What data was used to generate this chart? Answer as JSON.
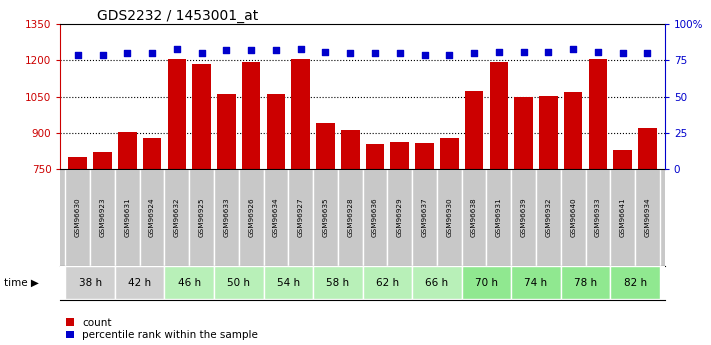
{
  "title": "GDS2232 / 1453001_at",
  "samples": [
    "GSM96630",
    "GSM96923",
    "GSM96631",
    "GSM96924",
    "GSM96632",
    "GSM96925",
    "GSM96633",
    "GSM96926",
    "GSM96634",
    "GSM96927",
    "GSM96635",
    "GSM96928",
    "GSM96636",
    "GSM96929",
    "GSM96637",
    "GSM96930",
    "GSM96638",
    "GSM96931",
    "GSM96639",
    "GSM96932",
    "GSM96640",
    "GSM96933",
    "GSM96641",
    "GSM96934"
  ],
  "counts": [
    800,
    820,
    903,
    878,
    1207,
    1185,
    1060,
    1195,
    1060,
    1207,
    940,
    912,
    855,
    862,
    858,
    878,
    1075,
    1193,
    1050,
    1053,
    1067,
    1205,
    830,
    918
  ],
  "percentiles": [
    79,
    79,
    80,
    80,
    83,
    80,
    82,
    82,
    82,
    83,
    81,
    80,
    80,
    80,
    79,
    79,
    80,
    81,
    81,
    81,
    83,
    81,
    80,
    80
  ],
  "time_groups": [
    {
      "label": "38 h",
      "indices": [
        0,
        1
      ],
      "color": "#d0d0d0"
    },
    {
      "label": "42 h",
      "indices": [
        2,
        3
      ],
      "color": "#d0d0d0"
    },
    {
      "label": "46 h",
      "indices": [
        4,
        5
      ],
      "color": "#b8f0b8"
    },
    {
      "label": "50 h",
      "indices": [
        6,
        7
      ],
      "color": "#b8f0b8"
    },
    {
      "label": "54 h",
      "indices": [
        8,
        9
      ],
      "color": "#b8f0b8"
    },
    {
      "label": "58 h",
      "indices": [
        10,
        11
      ],
      "color": "#b8f0b8"
    },
    {
      "label": "62 h",
      "indices": [
        12,
        13
      ],
      "color": "#b8f0b8"
    },
    {
      "label": "66 h",
      "indices": [
        14,
        15
      ],
      "color": "#b8f0b8"
    },
    {
      "label": "70 h",
      "indices": [
        16,
        17
      ],
      "color": "#90e890"
    },
    {
      "label": "74 h",
      "indices": [
        18,
        19
      ],
      "color": "#90e890"
    },
    {
      "label": "78 h",
      "indices": [
        20,
        21
      ],
      "color": "#90e890"
    },
    {
      "label": "82 h",
      "indices": [
        22,
        23
      ],
      "color": "#90e890"
    }
  ],
  "ylim_left": [
    750,
    1350
  ],
  "ylim_right": [
    0,
    100
  ],
  "yticks_left": [
    750,
    900,
    1050,
    1200,
    1350
  ],
  "yticks_right": [
    0,
    25,
    50,
    75,
    100
  ],
  "bar_color": "#cc0000",
  "dot_color": "#0000cc",
  "bg_color": "#ffffff",
  "sample_bg_color": "#c8c8c8",
  "title_fontsize": 10,
  "legend_count_label": "count",
  "legend_pct_label": "percentile rank within the sample",
  "bar_bottom": 750
}
